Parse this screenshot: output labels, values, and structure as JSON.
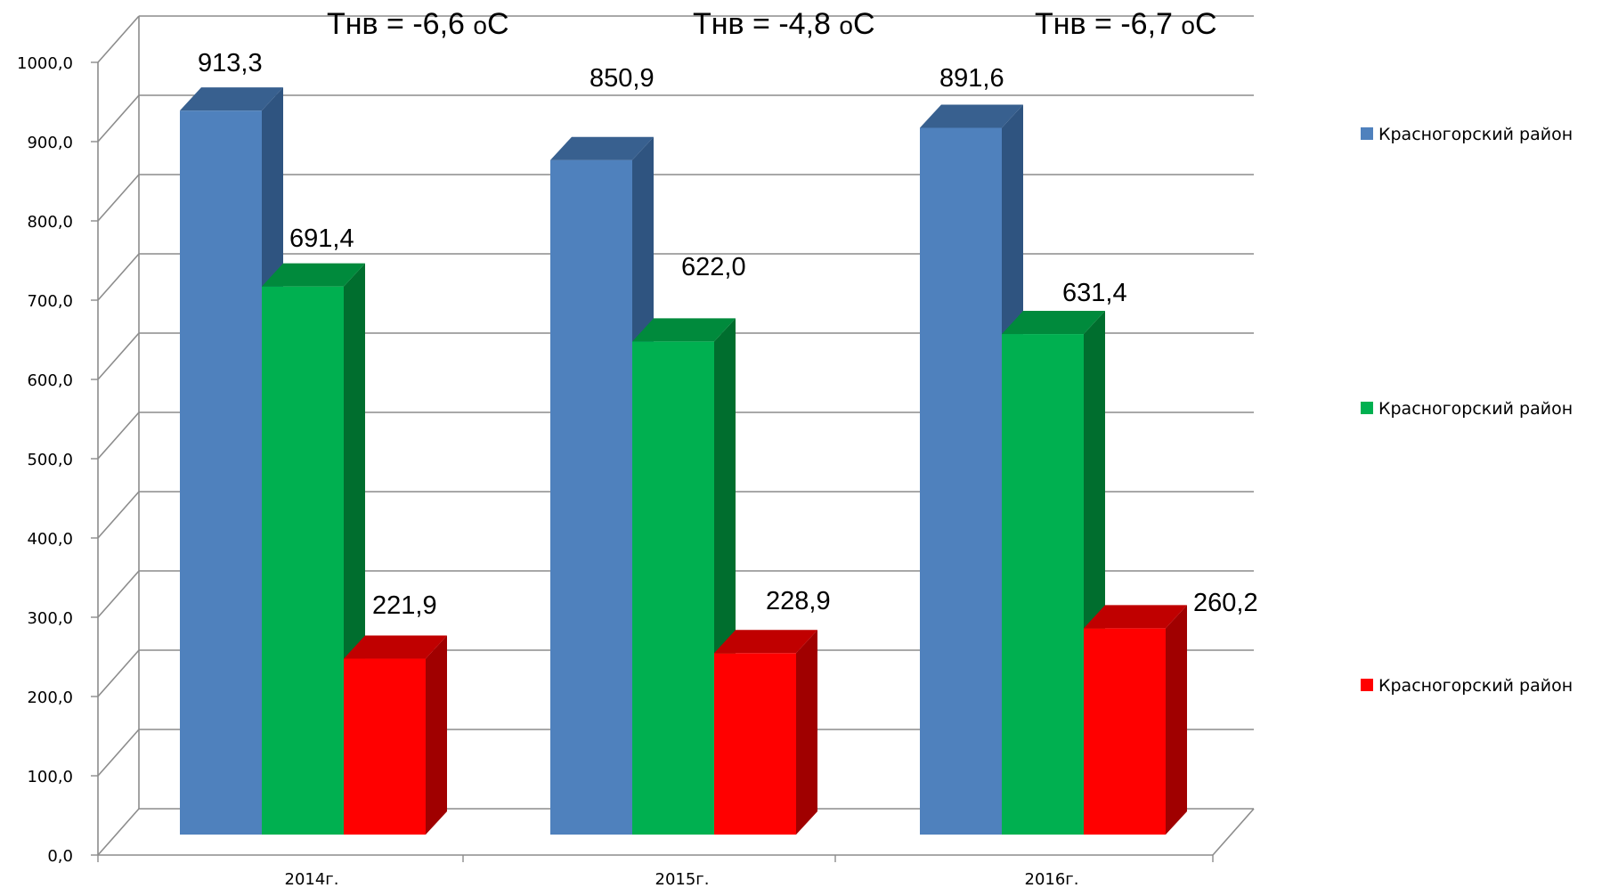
{
  "chart_data": {
    "type": "bar",
    "title": "",
    "xlabel": "",
    "ylabel": "",
    "categories": [
      "2014г.",
      "2015г.",
      "2016г."
    ],
    "series": [
      {
        "name": "Красногорский район",
        "values": [
          913.3,
          850.9,
          891.6
        ],
        "labels": [
          "913,3",
          "850,9",
          "891,6"
        ],
        "color": "#4F81BD",
        "side_color": "#2F5480",
        "top_color": "#38608F"
      },
      {
        "name": "Красногорский район",
        "values": [
          691.4,
          622.0,
          631.4
        ],
        "labels": [
          "691,4",
          "622,0",
          "631,4"
        ],
        "color": "#00B050",
        "side_color": "#006E2E",
        "top_color": "#008A3C"
      },
      {
        "name": "Красногорский район",
        "values": [
          221.9,
          228.9,
          260.2
        ],
        "labels": [
          "221,9",
          "228,9",
          "260,2"
        ],
        "color": "#FF0000",
        "side_color": "#A00000",
        "top_color": "#C00000"
      }
    ],
    "ylim": [
      0,
      1000
    ],
    "yticks": [
      {
        "value": 0,
        "label": "0,0"
      },
      {
        "value": 100,
        "label": "100,0"
      },
      {
        "value": 200,
        "label": "200,0"
      },
      {
        "value": 300,
        "label": "300,0"
      },
      {
        "value": 400,
        "label": "400,0"
      },
      {
        "value": 500,
        "label": "500,0"
      },
      {
        "value": 600,
        "label": "600,0"
      },
      {
        "value": 700,
        "label": "700,0"
      },
      {
        "value": 800,
        "label": "800,0"
      },
      {
        "value": 900,
        "label": "900,0"
      },
      {
        "value": 1000,
        "label": "1000,0"
      }
    ],
    "annotations": [
      {
        "main": "Tнв = -6,6 ",
        "sub": "o",
        "end": "C"
      },
      {
        "main": "Tнв = -4,8 ",
        "sub": "o",
        "end": "C"
      },
      {
        "main": "Tнв = -6,7 ",
        "sub": "o",
        "end": "C"
      }
    ],
    "grid": true,
    "three_d": true,
    "legend_position": "right"
  }
}
